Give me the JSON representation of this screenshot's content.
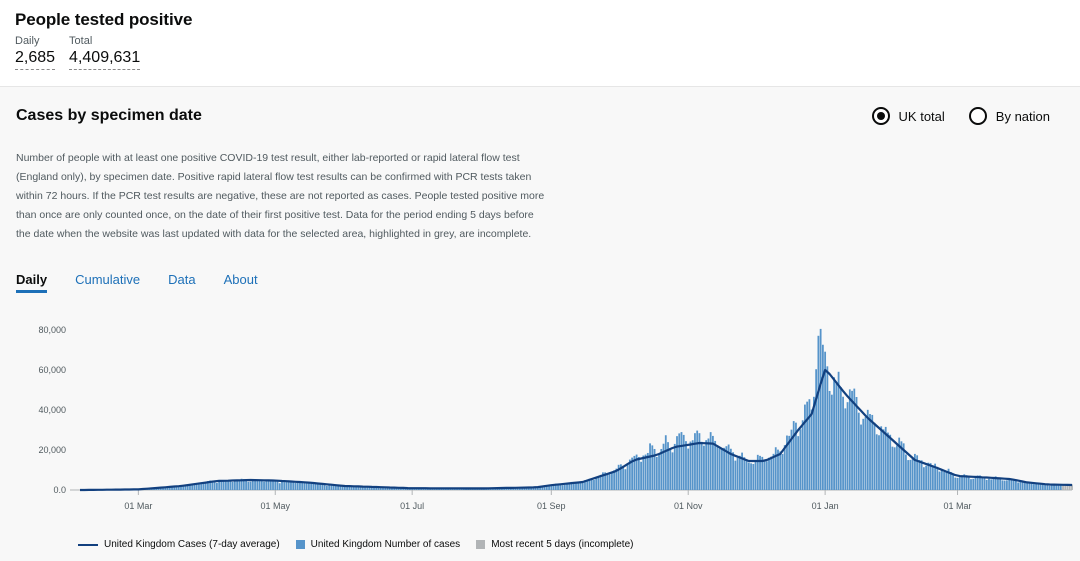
{
  "headline": {
    "title": "People tested positive",
    "daily_label": "Daily",
    "daily_value": "2,685",
    "total_label": "Total",
    "total_value": "4,409,631"
  },
  "card": {
    "title": "Cases by specimen date",
    "radio_uk": "UK total",
    "radio_nation": "By nation",
    "description": "Number of people with at least one positive COVID-19 test result, either lab-reported or rapid lateral flow test (England only), by specimen date. Positive rapid lateral flow test results can be confirmed with PCR tests taken within 72 hours. If the PCR test results are negative, these are not reported as cases. People tested positive more than once are only counted once, on the date of their first positive test. Data for the period ending 5 days before the date when the website was last updated with data for the selected area, highlighted in grey, are incomplete.",
    "tabs": [
      {
        "label": "Daily",
        "active": true
      },
      {
        "label": "Cumulative",
        "active": false
      },
      {
        "label": "Data",
        "active": false
      },
      {
        "label": "About",
        "active": false
      }
    ]
  },
  "colors": {
    "bar": "#5694ca",
    "line": "#12407f",
    "incomplete": "#b1b4b6"
  },
  "chart_data": {
    "type": "bar",
    "title": "",
    "ylim": [
      0,
      80000
    ],
    "y_ticks": [
      0,
      20000,
      40000,
      60000,
      80000
    ],
    "y_tick_labels": [
      "0.0",
      "20,000",
      "40,000",
      "60,000",
      "80,000"
    ],
    "x_range": [
      "2020-02-04",
      "2021-04-21"
    ],
    "x_ticks": [
      {
        "date": "2020-03-01",
        "label": "01 Mar"
      },
      {
        "date": "2020-05-01",
        "label": "01 May"
      },
      {
        "date": "2020-07-01",
        "label": "01 Jul"
      },
      {
        "date": "2020-09-01",
        "label": "01 Sep"
      },
      {
        "date": "2020-11-01",
        "label": "01 Nov"
      },
      {
        "date": "2021-01-01",
        "label": "01 Jan"
      },
      {
        "date": "2021-03-01",
        "label": "01 Mar"
      }
    ],
    "series": [
      {
        "name": "United Kingdom Cases (7-day average)",
        "kind": "line",
        "points": [
          [
            "2020-02-04",
            0
          ],
          [
            "2020-03-01",
            300
          ],
          [
            "2020-03-20",
            2000
          ],
          [
            "2020-04-05",
            4500
          ],
          [
            "2020-04-20",
            5000
          ],
          [
            "2020-05-01",
            4700
          ],
          [
            "2020-05-15",
            3800
          ],
          [
            "2020-06-01",
            2000
          ],
          [
            "2020-07-01",
            900
          ],
          [
            "2020-08-01",
            800
          ],
          [
            "2020-08-25",
            1300
          ],
          [
            "2020-09-01",
            2400
          ],
          [
            "2020-09-15",
            4000
          ],
          [
            "2020-09-30",
            9500
          ],
          [
            "2020-10-08",
            15000
          ],
          [
            "2020-10-18",
            17500
          ],
          [
            "2020-10-26",
            21500
          ],
          [
            "2020-11-06",
            23500
          ],
          [
            "2020-11-12",
            23200
          ],
          [
            "2020-11-20",
            18000
          ],
          [
            "2020-11-28",
            14500
          ],
          [
            "2020-12-05",
            14500
          ],
          [
            "2020-12-12",
            18000
          ],
          [
            "2020-12-20",
            30000
          ],
          [
            "2020-12-26",
            38000
          ],
          [
            "2020-12-30",
            53000
          ],
          [
            "2021-01-01",
            60000
          ],
          [
            "2021-01-03",
            58000
          ],
          [
            "2021-01-10",
            48000
          ],
          [
            "2021-01-20",
            36000
          ],
          [
            "2021-02-01",
            24000
          ],
          [
            "2021-02-10",
            15000
          ],
          [
            "2021-02-20",
            11000
          ],
          [
            "2021-03-01",
            7000
          ],
          [
            "2021-03-15",
            6200
          ],
          [
            "2021-03-25",
            5400
          ],
          [
            "2021-04-01",
            3800
          ],
          [
            "2021-04-10",
            2800
          ],
          [
            "2021-04-21",
            2500
          ]
        ]
      },
      {
        "name": "United Kingdom Number of cases",
        "kind": "bar",
        "envelope": [
          [
            "2020-02-04",
            0
          ],
          [
            "2020-03-01",
            300
          ],
          [
            "2020-03-20",
            2200
          ],
          [
            "2020-04-05",
            5000
          ],
          [
            "2020-04-20",
            5200
          ],
          [
            "2020-05-01",
            4900
          ],
          [
            "2020-05-15",
            3900
          ],
          [
            "2020-06-01",
            2000
          ],
          [
            "2020-07-01",
            900
          ],
          [
            "2020-08-01",
            800
          ],
          [
            "2020-08-25",
            1300
          ],
          [
            "2020-09-01",
            2600
          ],
          [
            "2020-09-15",
            4500
          ],
          [
            "2020-09-30",
            11000
          ],
          [
            "2020-10-08",
            18000
          ],
          [
            "2020-10-18",
            22000
          ],
          [
            "2020-10-26",
            27000
          ],
          [
            "2020-11-06",
            29000
          ],
          [
            "2020-11-12",
            27000
          ],
          [
            "2020-11-20",
            22000
          ],
          [
            "2020-11-28",
            16000
          ],
          [
            "2020-12-05",
            17000
          ],
          [
            "2020-12-12",
            22000
          ],
          [
            "2020-12-20",
            37000
          ],
          [
            "2020-12-26",
            47000
          ],
          [
            "2020-12-29",
            80000
          ],
          [
            "2021-01-01",
            68000
          ],
          [
            "2021-01-03",
            62000
          ],
          [
            "2021-01-10",
            55000
          ],
          [
            "2021-01-20",
            40000
          ],
          [
            "2021-02-01",
            27000
          ],
          [
            "2021-02-10",
            17000
          ],
          [
            "2021-02-20",
            12000
          ],
          [
            "2021-03-01",
            7500
          ],
          [
            "2021-03-15",
            6500
          ],
          [
            "2021-03-25",
            5500
          ],
          [
            "2021-04-01",
            4000
          ],
          [
            "2021-04-10",
            3000
          ],
          [
            "2021-04-21",
            2600
          ]
        ]
      },
      {
        "name": "Most recent 5 days (incomplete)",
        "kind": "bar",
        "start": "2021-04-17"
      }
    ]
  }
}
